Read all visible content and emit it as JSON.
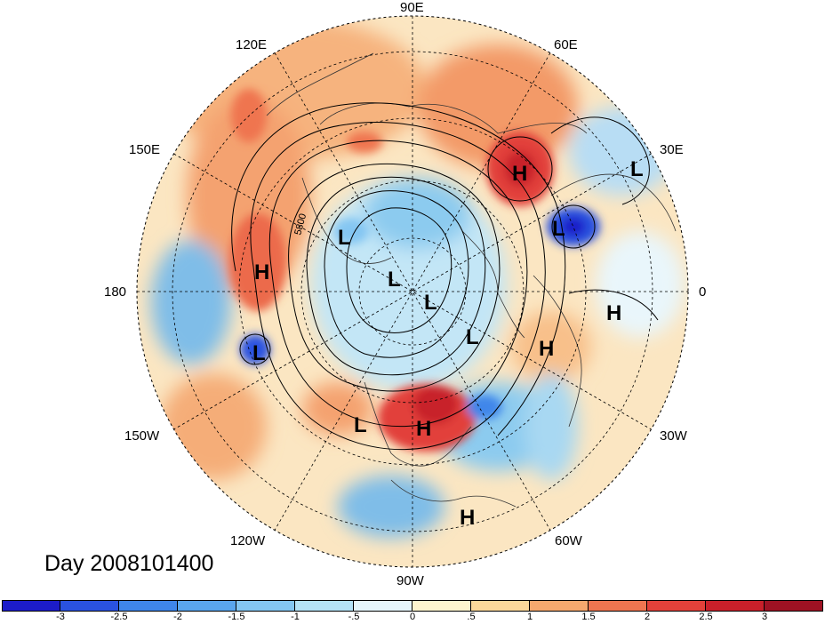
{
  "title": "Day 2008101400",
  "contour_label": "5800",
  "longitude_labels": {
    "top": "90E",
    "upper_left": "120E",
    "upper_right": "60E",
    "left_upper": "150E",
    "right_upper": "30E",
    "left": "180",
    "right": "0",
    "left_lower": "150W",
    "right_lower": "30W",
    "lower_left": "120W",
    "lower_right": "60W",
    "bottom": "90W"
  },
  "pressure_centers": [
    {
      "label": "H",
      "region": "northern Siberia"
    },
    {
      "label": "L",
      "region": "western Russia"
    },
    {
      "label": "L",
      "region": "northern Africa"
    },
    {
      "label": "L",
      "region": "eastern Siberia"
    },
    {
      "label": "H",
      "region": "north Pacific"
    },
    {
      "label": "L",
      "region": "Arctic"
    },
    {
      "label": "L",
      "region": "north pole"
    },
    {
      "label": "L",
      "region": "Greenland"
    },
    {
      "label": "H",
      "region": "Sahara"
    },
    {
      "label": "H",
      "region": "north Atlantic"
    },
    {
      "label": "L",
      "region": "central Pacific"
    },
    {
      "label": "L",
      "region": "western North America"
    },
    {
      "label": "H",
      "region": "central North America"
    },
    {
      "label": "H",
      "region": "Caribbean"
    }
  ],
  "colorbar": {
    "ticks": [
      "-3",
      "-2.5",
      "-2",
      "-1.5",
      "-1",
      "-.5",
      "0",
      ".5",
      "1",
      "1.5",
      "2",
      "2.5",
      "3"
    ],
    "colors": [
      "#1c1cc9",
      "#2a52e0",
      "#3f86ea",
      "#5aa6ee",
      "#84c6f2",
      "#b4e2f6",
      "#e6f6fb",
      "#fdf5cf",
      "#fbd89a",
      "#f6a86e",
      "#ef7550",
      "#e2413a",
      "#c8202a",
      "#9e1223"
    ]
  }
}
